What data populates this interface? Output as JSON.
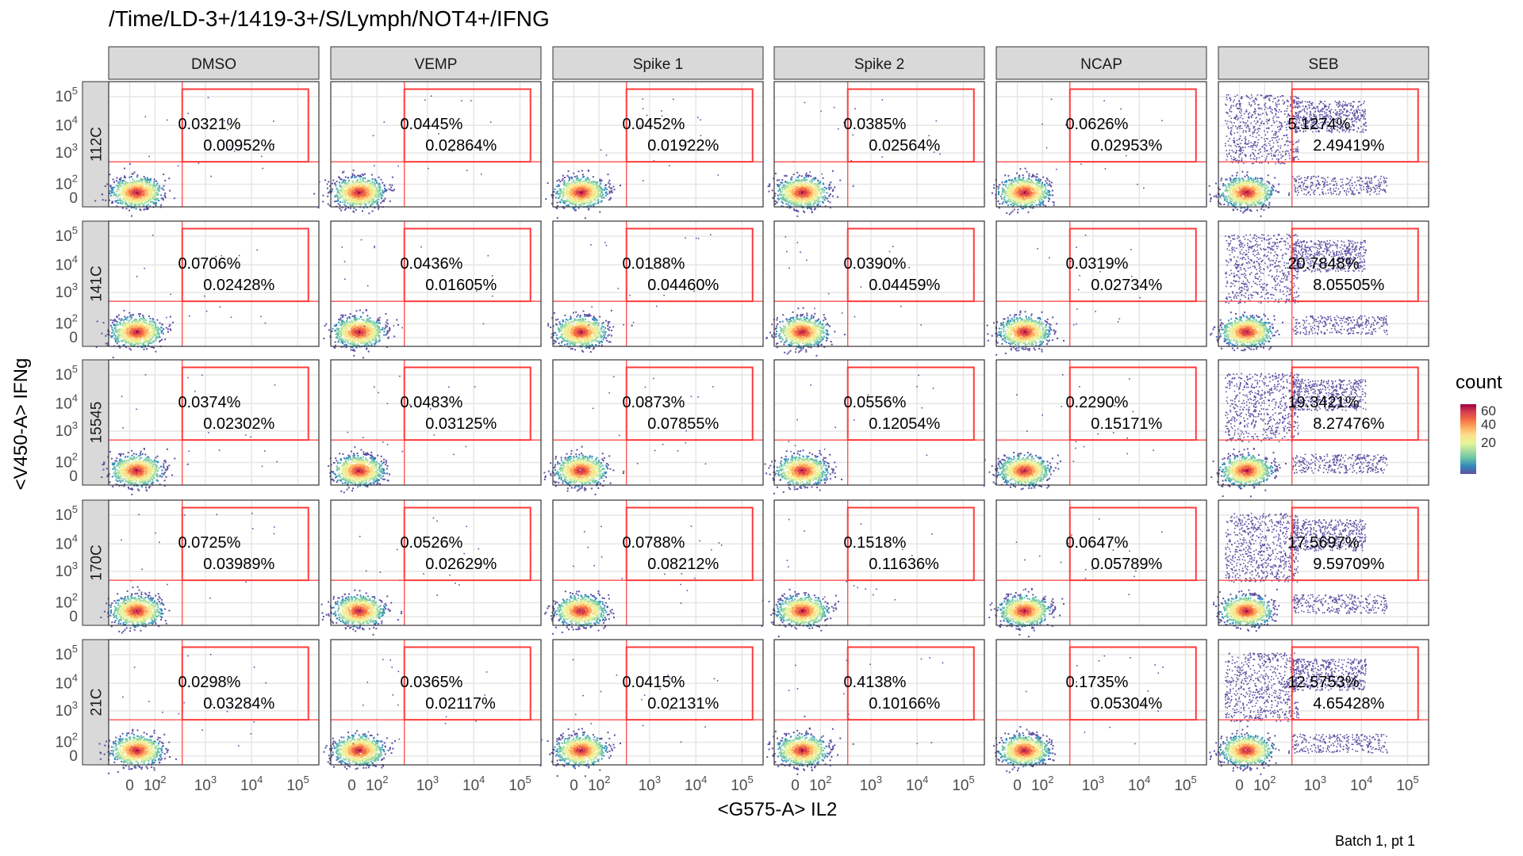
{
  "title": "/Time/LD-3+/1419-3+/S/Lymph/NOT4+/IFNG",
  "caption": "Batch 1, pt 1",
  "chart_data": {
    "type": "heatmap",
    "title": "/Time/LD-3+/1419-3+/S/Lymph/NOT4+/IFNG",
    "xlabel": "<G575-A> IL2",
    "ylabel": "<V450-A> IFNg",
    "x_ticks": [
      "0",
      "10^2",
      "10^3",
      "10^4",
      "10^5"
    ],
    "y_ticks": [
      "10^5",
      "10^4",
      "10^3",
      "10^2",
      "0"
    ],
    "columns": [
      "DMSO",
      "VEMP",
      "Spike 1",
      "Spike 2",
      "NCAP",
      "SEB"
    ],
    "rows": [
      "112C",
      "141C",
      "15545",
      "170C",
      "21C"
    ],
    "legend": {
      "title": "count",
      "ticks": [
        "60",
        "40",
        "20"
      ],
      "colors": [
        "#5e4fa2",
        "#3288bd",
        "#66c2a5",
        "#abdda4",
        "#e6f598",
        "#fee08b",
        "#fdae61",
        "#f46d43",
        "#d53e4f",
        "#9e0142"
      ]
    },
    "gate_color": "#ff3b3b",
    "stats": [
      [
        [
          "0.0321%",
          "0.00952%"
        ],
        [
          "0.0445%",
          "0.02864%"
        ],
        [
          "0.0452%",
          "0.01922%"
        ],
        [
          "0.0385%",
          "0.02564%"
        ],
        [
          "0.0626%",
          "0.02953%"
        ],
        [
          "5.1274%",
          "2.49419%"
        ]
      ],
      [
        [
          "0.0706%",
          "0.02428%"
        ],
        [
          "0.0436%",
          "0.01605%"
        ],
        [
          "0.0188%",
          "0.04460%"
        ],
        [
          "0.0390%",
          "0.04459%"
        ],
        [
          "0.0319%",
          "0.02734%"
        ],
        [
          "20.7848%",
          "8.05505%"
        ]
      ],
      [
        [
          "0.0374%",
          "0.02302%"
        ],
        [
          "0.0483%",
          "0.03125%"
        ],
        [
          "0.0873%",
          "0.07855%"
        ],
        [
          "0.0556%",
          "0.12054%"
        ],
        [
          "0.2290%",
          "0.15171%"
        ],
        [
          "19.3421%",
          "8.27476%"
        ]
      ],
      [
        [
          "0.0725%",
          "0.03989%"
        ],
        [
          "0.0526%",
          "0.02629%"
        ],
        [
          "0.0788%",
          "0.08212%"
        ],
        [
          "0.1518%",
          "0.11636%"
        ],
        [
          "0.0647%",
          "0.05789%"
        ],
        [
          "17.5697%",
          "9.59709%"
        ]
      ],
      [
        [
          "0.0298%",
          "0.03284%"
        ],
        [
          "0.0365%",
          "0.02117%"
        ],
        [
          "0.0415%",
          "0.02131%"
        ],
        [
          "0.4138%",
          "0.10166%"
        ],
        [
          "0.1735%",
          "0.05304%"
        ],
        [
          "12.5753%",
          "4.65428%"
        ]
      ]
    ]
  }
}
